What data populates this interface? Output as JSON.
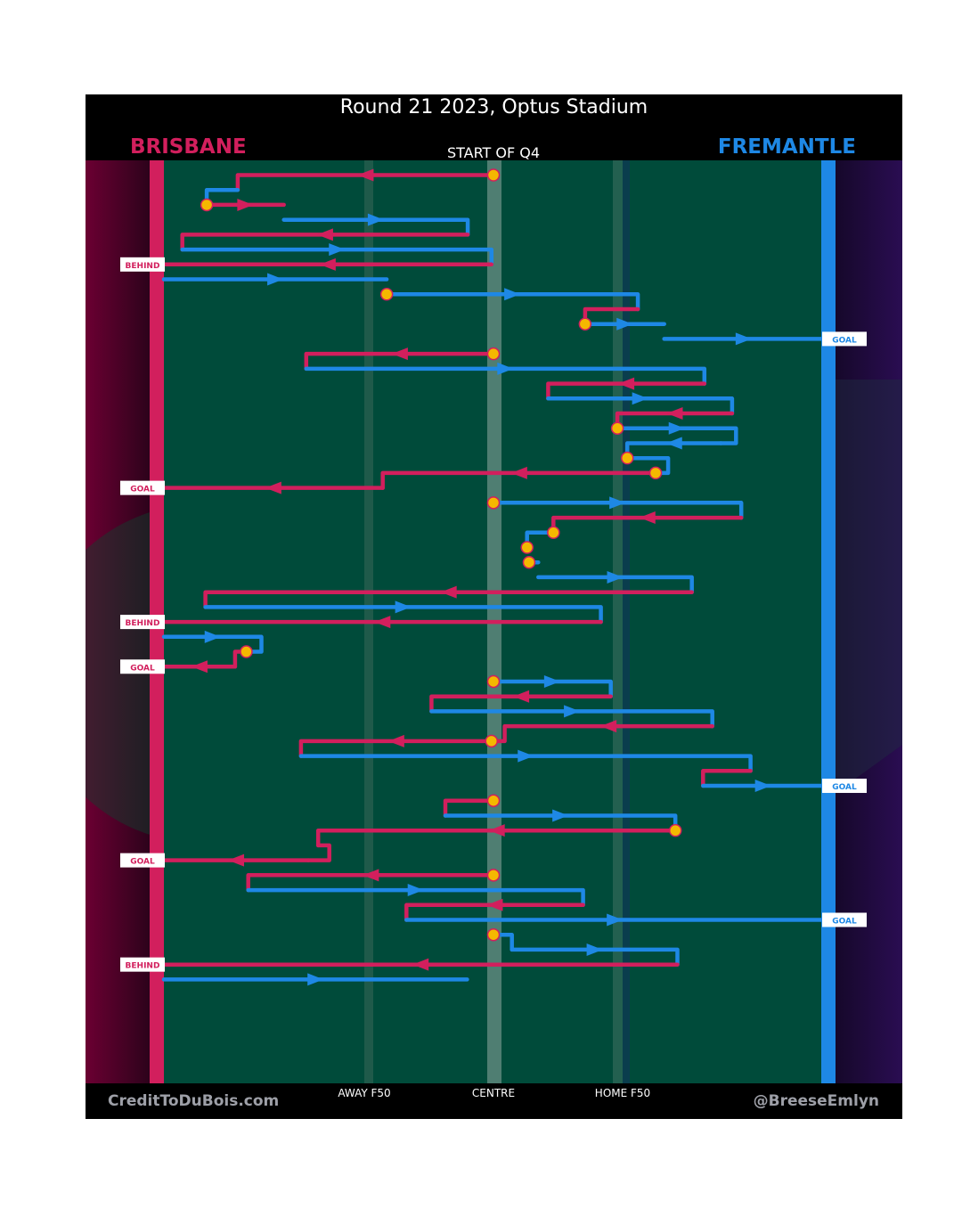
{
  "chart_data": {
    "type": "line",
    "title": "Round 21 2023, Optus Stadium",
    "subtitle": "START OF Q4",
    "teams": {
      "home": {
        "name": "BRISBANE",
        "color": "#d21f5d"
      },
      "away": {
        "name": "FREMANTLE",
        "color": "#1e88e5"
      }
    },
    "x_axis": {
      "range": [
        0,
        100
      ],
      "ticks": [
        {
          "value": 30,
          "label": "AWAY F50"
        },
        {
          "value": 50,
          "label": "CENTRE"
        },
        {
          "value": 70,
          "label": "HOME F50"
        }
      ]
    },
    "credits": {
      "left": "CreditToDuBois.com",
      "right": "@BreeseEmlyn"
    },
    "series": [
      {
        "team": "brisbane",
        "x": [
          50,
          11.2,
          11.2
        ],
        "stop": "centre"
      },
      {
        "team": "fremantle",
        "x": [
          11.2,
          6.5,
          6.5
        ]
      },
      {
        "team": "brisbane",
        "x": [
          6.5,
          18.2
        ],
        "stop": "contest"
      },
      {
        "team": "fremantle",
        "x": [
          18.2,
          46.1,
          46.1
        ]
      },
      {
        "team": "brisbane",
        "x": [
          46.1,
          2.8,
          2.8
        ]
      },
      {
        "team": "fremantle",
        "x": [
          2.8,
          49.7,
          49.7
        ]
      },
      {
        "team": "brisbane",
        "x": [
          49.7,
          0
        ],
        "end": "BEHIND"
      },
      {
        "team": "fremantle",
        "x": [
          0,
          33.8
        ]
      },
      {
        "team": "fremantle",
        "x": [
          33.8,
          71.9,
          71.9
        ],
        "start": "contest"
      },
      {
        "team": "brisbane",
        "x": [
          71.9,
          63.9,
          63.9
        ]
      },
      {
        "team": "fremantle",
        "x": [
          63.9,
          75.9
        ],
        "stop": "contest"
      },
      {
        "team": "fremantle",
        "x": [
          75.9,
          100
        ],
        "end": "GOAL"
      },
      {
        "team": "brisbane",
        "x": [
          50,
          21.6,
          21.6
        ],
        "stop": "centre"
      },
      {
        "team": "fremantle",
        "x": [
          21.6,
          82.0,
          82.0
        ]
      },
      {
        "team": "brisbane",
        "x": [
          82.0,
          58.3,
          58.3
        ]
      },
      {
        "team": "fremantle",
        "x": [
          58.3,
          86.2,
          86.2
        ]
      },
      {
        "team": "brisbane",
        "x": [
          86.2,
          68.8,
          68.8
        ]
      },
      {
        "team": "fremantle",
        "x": [
          68.8,
          86.8,
          86.8,
          84.5
        ],
        "stop": "contest"
      },
      {
        "team": "fremantle",
        "x": [
          84.5,
          70.3,
          70.3
        ]
      },
      {
        "team": "fremantle",
        "x": [
          70.3,
          76.5,
          76.5,
          74.6
        ],
        "stop": "contest"
      },
      {
        "team": "brisbane",
        "x": [
          74.6,
          33.2,
          33.2
        ],
        "stop": "contest"
      },
      {
        "team": "brisbane",
        "x": [
          33.2,
          0
        ],
        "end": "GOAL"
      },
      {
        "team": "fremantle",
        "x": [
          50,
          87.6,
          87.6
        ],
        "stop": "centre"
      },
      {
        "team": "brisbane",
        "x": [
          87.6,
          59.1,
          59.1
        ]
      },
      {
        "team": "fremantle",
        "x": [
          59.1,
          55.1,
          55.1
        ],
        "stop": "contest"
      },
      {
        "team": "fremantle",
        "x": [
          55.1,
          55.4
        ],
        "stop": "contest"
      },
      {
        "team": "fremantle",
        "x": [
          55.4,
          56.8
        ],
        "stop": "contest"
      },
      {
        "team": "fremantle",
        "x": [
          56.8,
          80.1,
          80.1
        ]
      },
      {
        "team": "brisbane",
        "x": [
          80.1,
          6.3,
          6.3
        ]
      },
      {
        "team": "fremantle",
        "x": [
          6.3,
          66.3,
          66.3
        ]
      },
      {
        "team": "brisbane",
        "x": [
          66.3,
          0
        ],
        "end": "BEHIND"
      },
      {
        "team": "fremantle",
        "x": [
          0,
          14.8,
          14.8,
          12.5
        ]
      },
      {
        "team": "brisbane",
        "x": [
          12.5,
          10.8,
          10.8
        ],
        "stop": "contest"
      },
      {
        "team": "brisbane",
        "x": [
          10.8,
          0
        ],
        "end": "GOAL"
      },
      {
        "team": "fremantle",
        "x": [
          50,
          67.8,
          67.8
        ],
        "stop": "centre"
      },
      {
        "team": "brisbane",
        "x": [
          67.8,
          40.6,
          40.6
        ]
      },
      {
        "team": "fremantle",
        "x": [
          40.6,
          83.2,
          83.2
        ]
      },
      {
        "team": "brisbane",
        "x": [
          83.2,
          51.7,
          51.7,
          49.7
        ]
      },
      {
        "team": "brisbane",
        "x": [
          49.7,
          20.8,
          20.8
        ],
        "stop": "contest"
      },
      {
        "team": "fremantle",
        "x": [
          20.8,
          89.0,
          89.0
        ]
      },
      {
        "team": "brisbane",
        "x": [
          89.0,
          81.8,
          81.8
        ]
      },
      {
        "team": "fremantle",
        "x": [
          81.8,
          100
        ],
        "end": "GOAL"
      },
      {
        "team": "brisbane",
        "x": [
          50,
          42.7,
          42.7
        ],
        "stop": "centre"
      },
      {
        "team": "fremantle",
        "x": [
          42.7,
          77.6,
          77.6
        ]
      },
      {
        "team": "brisbane",
        "x": [
          77.6,
          23.4,
          23.4
        ],
        "stop": "contest"
      },
      {
        "team": "brisbane",
        "x": [
          23.4,
          25.1,
          25.1,
          21.9,
          21.9
        ]
      },
      {
        "team": "brisbane",
        "x": [
          21.9,
          0
        ],
        "end": "GOAL"
      },
      {
        "team": "brisbane",
        "x": [
          50,
          12.8,
          12.8
        ],
        "stop": "centre"
      },
      {
        "team": "fremantle",
        "x": [
          12.8,
          63.6,
          63.6
        ]
      },
      {
        "team": "brisbane",
        "x": [
          63.6,
          36.8,
          36.8
        ]
      },
      {
        "team": "fremantle",
        "x": [
          36.8,
          100
        ],
        "end": "GOAL"
      },
      {
        "team": "fremantle",
        "x": [
          50,
          52.8,
          52.8
        ],
        "stop": "centre"
      },
      {
        "team": "fremantle",
        "x": [
          52.8,
          77.9,
          77.9
        ]
      },
      {
        "team": "brisbane",
        "x": [
          77.9,
          0
        ],
        "end": "BEHIND"
      },
      {
        "team": "fremantle",
        "x": [
          0,
          46.0
        ]
      }
    ]
  }
}
